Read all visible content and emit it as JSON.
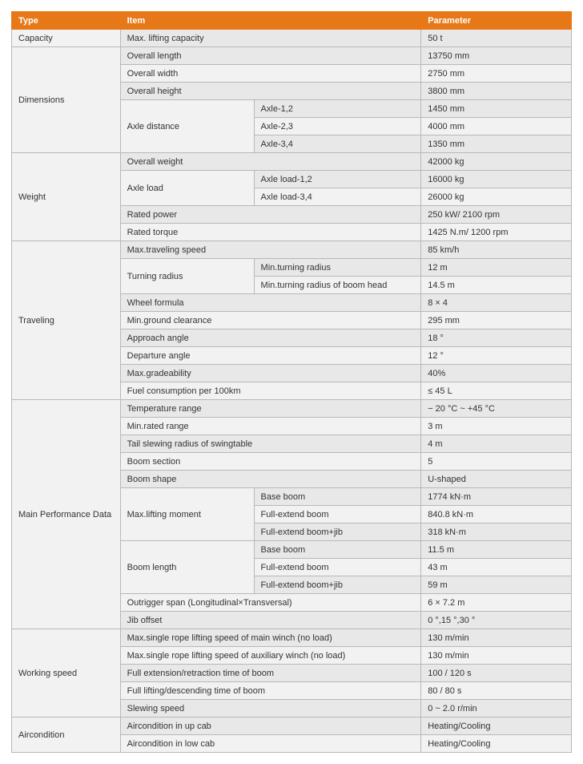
{
  "headers": {
    "type": "Type",
    "item": "Item",
    "parameter": "Parameter"
  },
  "rows": {
    "r0": {
      "type": "Capacity",
      "item": "Max. lifting capacity",
      "param": "50 t"
    },
    "r1": {
      "type": "Dimensions",
      "item": "Overall length",
      "param": "13750 mm"
    },
    "r2": {
      "item": "Overall width",
      "param": "2750 mm"
    },
    "r3": {
      "item": "Overall height",
      "param": "3800 mm"
    },
    "r4": {
      "item": "Axle distance",
      "sub": "Axle-1,2",
      "param": "1450 mm"
    },
    "r5": {
      "sub": "Axle-2,3",
      "param": "4000 mm"
    },
    "r6": {
      "sub": "Axle-3,4",
      "param": "1350 mm"
    },
    "r7": {
      "type": "Weight",
      "item": "Overall weight",
      "param": "42000 kg"
    },
    "r8": {
      "item": "Axle load",
      "sub": "Axle load-1,2",
      "param": "16000 kg"
    },
    "r9": {
      "sub": "Axle load-3,4",
      "param": "26000 kg"
    },
    "r10": {
      "item": "Rated power",
      "param": "250 kW/ 2100 rpm"
    },
    "r11": {
      "item": "Rated torque",
      "param": "1425 N.m/ 1200 rpm"
    },
    "r12": {
      "type": "Traveling",
      "item": "Max.traveling speed",
      "param": "85 km/h"
    },
    "r13": {
      "item": "Turning radius",
      "sub": "Min.turning radius",
      "param": "12 m"
    },
    "r14": {
      "sub": "Min.turning radius of boom head",
      "param": "14.5 m"
    },
    "r15": {
      "item": "Wheel formula",
      "param": "8 × 4"
    },
    "r16": {
      "item": "Min.ground clearance",
      "param": "295 mm"
    },
    "r17": {
      "item": "Approach angle",
      "param": "18 °"
    },
    "r18": {
      "item": "Departure angle",
      "param": "12 °"
    },
    "r19": {
      "item": "Max.gradeability",
      "param": "40%"
    },
    "r20": {
      "item": "Fuel consumption per 100km",
      "param": "≤ 45 L"
    },
    "r21": {
      "type": "Main Performance Data",
      "item": "Temperature range",
      "param": "− 20 °C ~ +45 °C"
    },
    "r22": {
      "item": "Min.rated range",
      "param": "3 m"
    },
    "r23": {
      "item": "Tail slewing radius of swingtable",
      "param": "4 m"
    },
    "r24": {
      "item": "Boom section",
      "param": "5"
    },
    "r25": {
      "item": "Boom shape",
      "param": "U-shaped"
    },
    "r26": {
      "item": "Max.lifting moment",
      "sub": "Base boom",
      "param": "1774 kN·m"
    },
    "r27": {
      "sub": "Full-extend boom",
      "param": "840.8 kN·m"
    },
    "r28": {
      "sub": "Full-extend boom+jib",
      "param": "318 kN·m"
    },
    "r29": {
      "item": "Boom length",
      "sub": "Base boom",
      "param": "11.5 m"
    },
    "r30": {
      "sub": "Full-extend boom",
      "param": "43 m"
    },
    "r31": {
      "sub": "Full-extend boom+jib",
      "param": "59 m"
    },
    "r32": {
      "item": "Outrigger span (Longitudinal×Transversal)",
      "param": "6 × 7.2 m"
    },
    "r33": {
      "item": "Jib offset",
      "param": "0 °,15 °,30 °"
    },
    "r34": {
      "type": "Working speed",
      "item": "Max.single rope lifting speed of main winch (no load)",
      "param": "130  m/min"
    },
    "r35": {
      "item": "Max.single rope lifting speed of auxiliary winch (no load)",
      "param": "130  m/min"
    },
    "r36": {
      "item": "Full extension/retraction time of boom",
      "param": "100 / 120 s"
    },
    "r37": {
      "item": "Full lifting/descending time of boom",
      "param": "80 / 80 s"
    },
    "r38": {
      "item": "Slewing speed",
      "param": "0 ~ 2.0 r/min"
    },
    "r39": {
      "type": "Aircondition",
      "item": "Aircondition in up cab",
      "param": "Heating/Cooling"
    },
    "r40": {
      "item": "Aircondition in low cab",
      "param": "Heating/Cooling"
    }
  }
}
